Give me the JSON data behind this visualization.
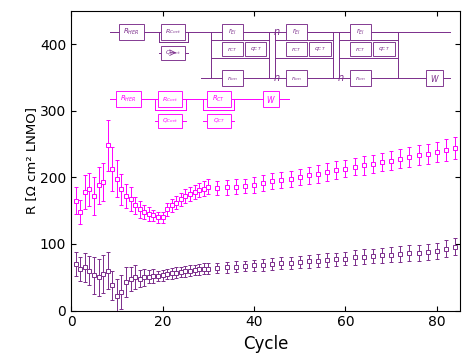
{
  "xlabel": "Cycle",
  "ylabel": "R [Ω cm² LNMO]",
  "xlim": [
    0,
    85
  ],
  "ylim": [
    0,
    450
  ],
  "yticks": [
    0,
    100,
    200,
    300,
    400
  ],
  "xticks": [
    0,
    20,
    40,
    60,
    80
  ],
  "magenta_color": "#FF00FF",
  "purple_color": "#7B2D8B",
  "magenta_x": [
    1,
    2,
    3,
    4,
    5,
    6,
    7,
    8,
    9,
    10,
    11,
    12,
    13,
    14,
    15,
    16,
    17,
    18,
    19,
    20,
    21,
    22,
    23,
    24,
    25,
    26,
    27,
    28,
    29,
    30,
    32,
    34,
    36,
    38,
    40,
    42,
    44,
    46,
    48,
    50,
    52,
    54,
    56,
    58,
    60,
    62,
    64,
    66,
    68,
    70,
    72,
    74,
    76,
    78,
    80,
    82,
    84
  ],
  "magenta_y": [
    165,
    148,
    178,
    182,
    172,
    188,
    193,
    248,
    212,
    198,
    182,
    172,
    168,
    158,
    152,
    148,
    145,
    143,
    140,
    140,
    152,
    158,
    162,
    167,
    172,
    175,
    178,
    181,
    183,
    186,
    184,
    185,
    186,
    187,
    189,
    191,
    194,
    196,
    198,
    200,
    203,
    205,
    208,
    211,
    213,
    216,
    218,
    220,
    223,
    225,
    228,
    230,
    233,
    235,
    238,
    241,
    244
  ],
  "magenta_yerr_lo": [
    20,
    18,
    25,
    25,
    28,
    28,
    28,
    38,
    33,
    28,
    23,
    18,
    18,
    13,
    13,
    10,
    10,
    8,
    8,
    8,
    10,
    10,
    10,
    10,
    10,
    10,
    11,
    11,
    11,
    11,
    11,
    11,
    11,
    11,
    12,
    12,
    12,
    12,
    12,
    12,
    13,
    13,
    13,
    13,
    13,
    13,
    14,
    14,
    14,
    14,
    14,
    15,
    15,
    15,
    15,
    16,
    16
  ],
  "magenta_yerr_hi": [
    20,
    18,
    25,
    25,
    28,
    28,
    28,
    38,
    33,
    28,
    23,
    18,
    18,
    13,
    13,
    10,
    10,
    8,
    8,
    8,
    10,
    10,
    10,
    10,
    10,
    10,
    11,
    11,
    11,
    11,
    11,
    11,
    11,
    11,
    12,
    12,
    12,
    12,
    12,
    12,
    13,
    13,
    13,
    13,
    13,
    13,
    14,
    14,
    14,
    14,
    14,
    15,
    15,
    15,
    15,
    16,
    16
  ],
  "purple_x": [
    1,
    2,
    3,
    4,
    5,
    6,
    7,
    8,
    9,
    10,
    11,
    12,
    13,
    14,
    15,
    16,
    17,
    18,
    19,
    20,
    21,
    22,
    23,
    24,
    25,
    26,
    27,
    28,
    29,
    30,
    32,
    34,
    36,
    38,
    40,
    42,
    44,
    46,
    48,
    50,
    52,
    54,
    56,
    58,
    60,
    62,
    64,
    66,
    68,
    70,
    72,
    74,
    76,
    78,
    80,
    82,
    84
  ],
  "purple_y": [
    70,
    62,
    65,
    60,
    53,
    50,
    55,
    60,
    38,
    22,
    28,
    43,
    48,
    50,
    48,
    50,
    51,
    52,
    52,
    53,
    55,
    56,
    57,
    58,
    59,
    60,
    61,
    62,
    63,
    63,
    64,
    65,
    66,
    67,
    68,
    69,
    70,
    71,
    72,
    73,
    74,
    75,
    76,
    77,
    78,
    80,
    81,
    82,
    83,
    84,
    85,
    86,
    87,
    88,
    90,
    93,
    96
  ],
  "purple_yerr_lo": [
    18,
    18,
    22,
    22,
    28,
    28,
    28,
    28,
    22,
    25,
    25,
    22,
    18,
    18,
    13,
    13,
    10,
    10,
    8,
    8,
    8,
    8,
    8,
    8,
    8,
    8,
    8,
    8,
    8,
    8,
    8,
    8,
    8,
    8,
    8,
    9,
    9,
    9,
    9,
    9,
    10,
    10,
    10,
    10,
    10,
    11,
    11,
    11,
    11,
    11,
    12,
    12,
    12,
    12,
    12,
    13,
    13
  ],
  "purple_yerr_hi": [
    18,
    18,
    22,
    22,
    28,
    28,
    28,
    28,
    22,
    25,
    25,
    22,
    18,
    18,
    13,
    13,
    10,
    10,
    8,
    8,
    8,
    8,
    8,
    8,
    8,
    8,
    8,
    8,
    8,
    8,
    8,
    8,
    8,
    8,
    8,
    9,
    9,
    9,
    9,
    9,
    10,
    10,
    10,
    10,
    10,
    11,
    11,
    11,
    11,
    11,
    12,
    12,
    12,
    12,
    12,
    13,
    13
  ]
}
